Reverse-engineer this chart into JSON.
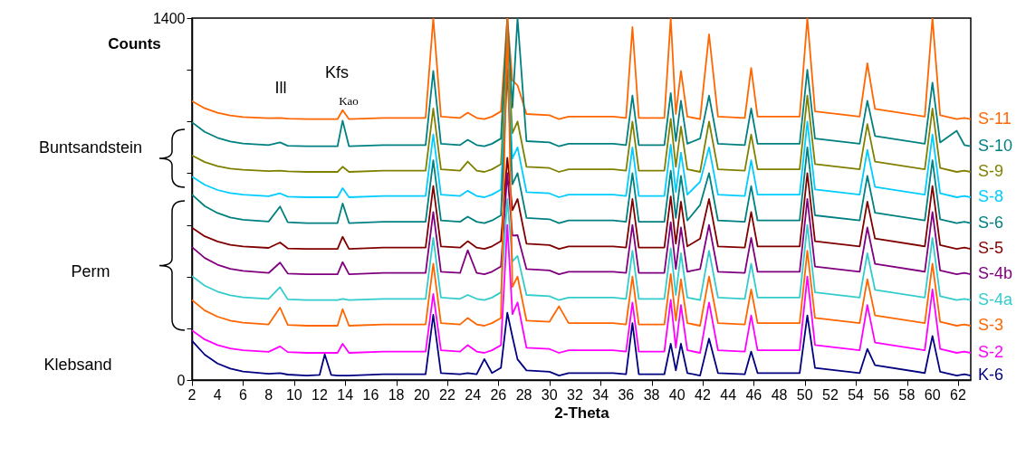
{
  "chart_data": {
    "type": "line",
    "xlabel": "2-Theta",
    "ylabel": "Counts",
    "xlim": [
      2,
      63
    ],
    "xticks": [
      2,
      4,
      6,
      8,
      10,
      12,
      14,
      16,
      18,
      20,
      22,
      24,
      26,
      28,
      30,
      32,
      34,
      36,
      38,
      40,
      42,
      44,
      46,
      48,
      50,
      52,
      54,
      56,
      58,
      60,
      62
    ],
    "ylim": [
      0,
      1400
    ],
    "yticks": [
      0,
      {
        "value": 200,
        "label": null
      },
      {
        "value": 400,
        "label": null
      },
      {
        "value": 600,
        "label": null
      },
      {
        "value": 800,
        "label": null
      },
      {
        "value": 1000,
        "label": null
      },
      {
        "value": 1200,
        "label": null
      },
      1400
    ],
    "x": [
      2,
      3,
      4,
      5,
      6,
      8,
      8.9,
      9.5,
      11,
      12,
      12.4,
      12.9,
      13.4,
      13.8,
      14.3,
      17,
      20.3,
      20.9,
      21.5,
      23,
      23.6,
      24.3,
      24.9,
      25.5,
      26.2,
      26.7,
      27.1,
      27.5,
      28.2,
      30,
      30.75,
      31.5,
      35,
      36,
      36.5,
      37,
      39,
      39.5,
      39.9,
      40.3,
      40.8,
      41.8,
      42.5,
      43.2,
      45.3,
      45.8,
      46.3,
      49.6,
      50.2,
      50.8,
      54.3,
      54.9,
      55.5,
      59.4,
      60,
      60.6,
      61.9,
      62.5,
      63
    ],
    "series": [
      {
        "name": "S-11",
        "color": "#ff6600",
        "values": [
          1079,
          1051,
          1034,
          1023,
          1017,
          1013,
          1014,
          1011,
          1009,
          1009,
          1009,
          1009,
          1009,
          1044,
          1009,
          1014,
          1014,
          1400,
          1019,
          1014,
          1034,
          1014,
          1009,
          1019,
          1039,
          1400,
          1159,
          1140,
          1029,
          1024,
          1009,
          1019,
          1019,
          1014,
          1365,
          1014,
          1014,
          1400,
          1029,
          1196,
          1019,
          1009,
          1337,
          1019,
          1014,
          1207,
          1019,
          1019,
          1400,
          1039,
          1019,
          1225,
          1049,
          1019,
          1400,
          1024,
          1009,
          1014,
          1009
        ]
      },
      {
        "name": "S-10",
        "color": "#008080",
        "values": [
          997,
          960,
          937,
          923,
          915,
          909,
          919,
          906,
          904,
          904,
          904,
          904,
          904,
          1003,
          904,
          909,
          909,
          1196,
          914,
          909,
          929,
          909,
          904,
          914,
          934,
          1400,
          1054,
          1400,
          924,
          919,
          904,
          914,
          914,
          909,
          1100,
          909,
          909,
          1110,
          924,
          1080,
          914,
          934,
          1100,
          914,
          909,
          1050,
          914,
          914,
          1200,
          934,
          914,
          1080,
          944,
          914,
          1150,
          919,
          964,
          909,
          904
        ]
      },
      {
        "name": "S-9",
        "color": "#808000",
        "values": [
          869,
          843,
          827,
          818,
          813,
          808,
          810,
          807,
          805,
          805,
          805,
          805,
          805,
          825,
          805,
          810,
          810,
          1050,
          815,
          810,
          845,
          810,
          805,
          815,
          835,
          1300,
          955,
          1000,
          825,
          820,
          805,
          815,
          815,
          810,
          1000,
          810,
          810,
          1010,
          825,
          980,
          815,
          805,
          1000,
          815,
          810,
          950,
          815,
          815,
          1100,
          835,
          815,
          990,
          845,
          815,
          1050,
          820,
          805,
          810,
          805
        ]
      },
      {
        "name": "S-8",
        "color": "#00ccff",
        "values": [
          787,
          755,
          735,
          723,
          717,
          711,
          722,
          709,
          707,
          707,
          707,
          707,
          707,
          742,
          707,
          712,
          712,
          950,
          717,
          712,
          732,
          712,
          707,
          717,
          737,
          1250,
          857,
          900,
          727,
          722,
          707,
          717,
          717,
          712,
          900,
          712,
          712,
          910,
          727,
          880,
          717,
          767,
          900,
          717,
          712,
          850,
          717,
          717,
          1000,
          737,
          717,
          890,
          747,
          717,
          950,
          722,
          707,
          712,
          707
        ]
      },
      {
        "name": "S-6",
        "color": "#008080",
        "values": [
          717,
          673,
          646,
          629,
          620,
          613,
          671,
          610,
          607,
          607,
          607,
          607,
          607,
          683,
          607,
          612,
          612,
          850,
          617,
          612,
          632,
          612,
          607,
          617,
          637,
          1200,
          757,
          800,
          627,
          622,
          607,
          617,
          617,
          612,
          800,
          612,
          612,
          810,
          627,
          790,
          617,
          677,
          800,
          617,
          612,
          750,
          617,
          617,
          900,
          637,
          617,
          790,
          647,
          617,
          850,
          622,
          607,
          612,
          607
        ]
      },
      {
        "name": "S-5",
        "color": "#800000",
        "values": [
          589,
          556,
          536,
          523,
          517,
          511,
          532,
          509,
          507,
          507,
          507,
          507,
          507,
          554,
          507,
          512,
          512,
          750,
          517,
          512,
          537,
          512,
          507,
          517,
          537,
          860,
          657,
          700,
          527,
          522,
          507,
          517,
          517,
          512,
          700,
          512,
          512,
          710,
          527,
          690,
          517,
          547,
          700,
          517,
          512,
          650,
          517,
          517,
          800,
          537,
          517,
          690,
          547,
          517,
          750,
          522,
          507,
          512,
          507
        ]
      },
      {
        "name": "S-4b",
        "color": "#800080",
        "values": [
          514,
          472,
          446,
          430,
          422,
          414,
          454,
          412,
          409,
          409,
          409,
          409,
          409,
          456,
          409,
          414,
          414,
          650,
          419,
          414,
          502,
          414,
          409,
          419,
          439,
          800,
          559,
          560,
          429,
          424,
          409,
          419,
          419,
          414,
          600,
          414,
          414,
          610,
          429,
          590,
          419,
          429,
          600,
          419,
          414,
          550,
          419,
          419,
          700,
          439,
          419,
          590,
          449,
          419,
          650,
          424,
          409,
          414,
          409
        ]
      },
      {
        "name": "S-4a",
        "color": "#33cccc",
        "values": [
          402,
          365,
          342,
          328,
          320,
          314,
          359,
          312,
          309,
          309,
          309,
          309,
          309,
          314,
          309,
          314,
          314,
          550,
          319,
          314,
          329,
          314,
          309,
          319,
          339,
          700,
          459,
          480,
          329,
          324,
          309,
          319,
          319,
          314,
          500,
          314,
          314,
          510,
          329,
          490,
          319,
          309,
          500,
          319,
          314,
          450,
          319,
          319,
          600,
          339,
          319,
          490,
          349,
          319,
          550,
          324,
          309,
          314,
          309
        ]
      },
      {
        "name": "S-3",
        "color": "#ff6600",
        "values": [
          309,
          269,
          245,
          230,
          222,
          215,
          280,
          213,
          210,
          210,
          210,
          210,
          210,
          274,
          210,
          215,
          215,
          450,
          220,
          215,
          240,
          215,
          210,
          220,
          240,
          1400,
          360,
          400,
          230,
          225,
          285,
          220,
          220,
          215,
          400,
          215,
          215,
          410,
          230,
          390,
          220,
          210,
          400,
          220,
          215,
          350,
          220,
          220,
          500,
          240,
          220,
          390,
          250,
          220,
          450,
          225,
          210,
          215,
          210
        ]
      },
      {
        "name": "S-2",
        "color": "#ff00ff",
        "values": [
          192,
          157,
          135,
          122,
          115,
          109,
          130,
          108,
          105,
          105,
          105,
          105,
          105,
          140,
          105,
          110,
          110,
          333,
          115,
          110,
          135,
          110,
          105,
          115,
          135,
          600,
          255,
          300,
          125,
          120,
          105,
          115,
          115,
          110,
          300,
          110,
          110,
          310,
          125,
          290,
          115,
          105,
          300,
          115,
          110,
          250,
          115,
          115,
          400,
          135,
          115,
          290,
          145,
          115,
          350,
          120,
          105,
          110,
          105
        ]
      },
      {
        "name": "K-6",
        "color": "#000080",
        "values": [
          152,
          98,
          64,
          44,
          33,
          24,
          27,
          21,
          17,
          20,
          99,
          20,
          17,
          17,
          17,
          22,
          22,
          252,
          27,
          22,
          27,
          22,
          81,
          27,
          47,
          260,
          167,
          80,
          37,
          32,
          17,
          27,
          27,
          22,
          220,
          22,
          22,
          140,
          37,
          140,
          27,
          17,
          160,
          27,
          22,
          110,
          27,
          27,
          250,
          47,
          27,
          120,
          57,
          27,
          170,
          32,
          17,
          22,
          17
        ]
      }
    ],
    "annotations": [
      "Ill",
      "Kao",
      "Kfs",
      "Buntsandstein",
      "Perm",
      "Klebsand"
    ]
  }
}
